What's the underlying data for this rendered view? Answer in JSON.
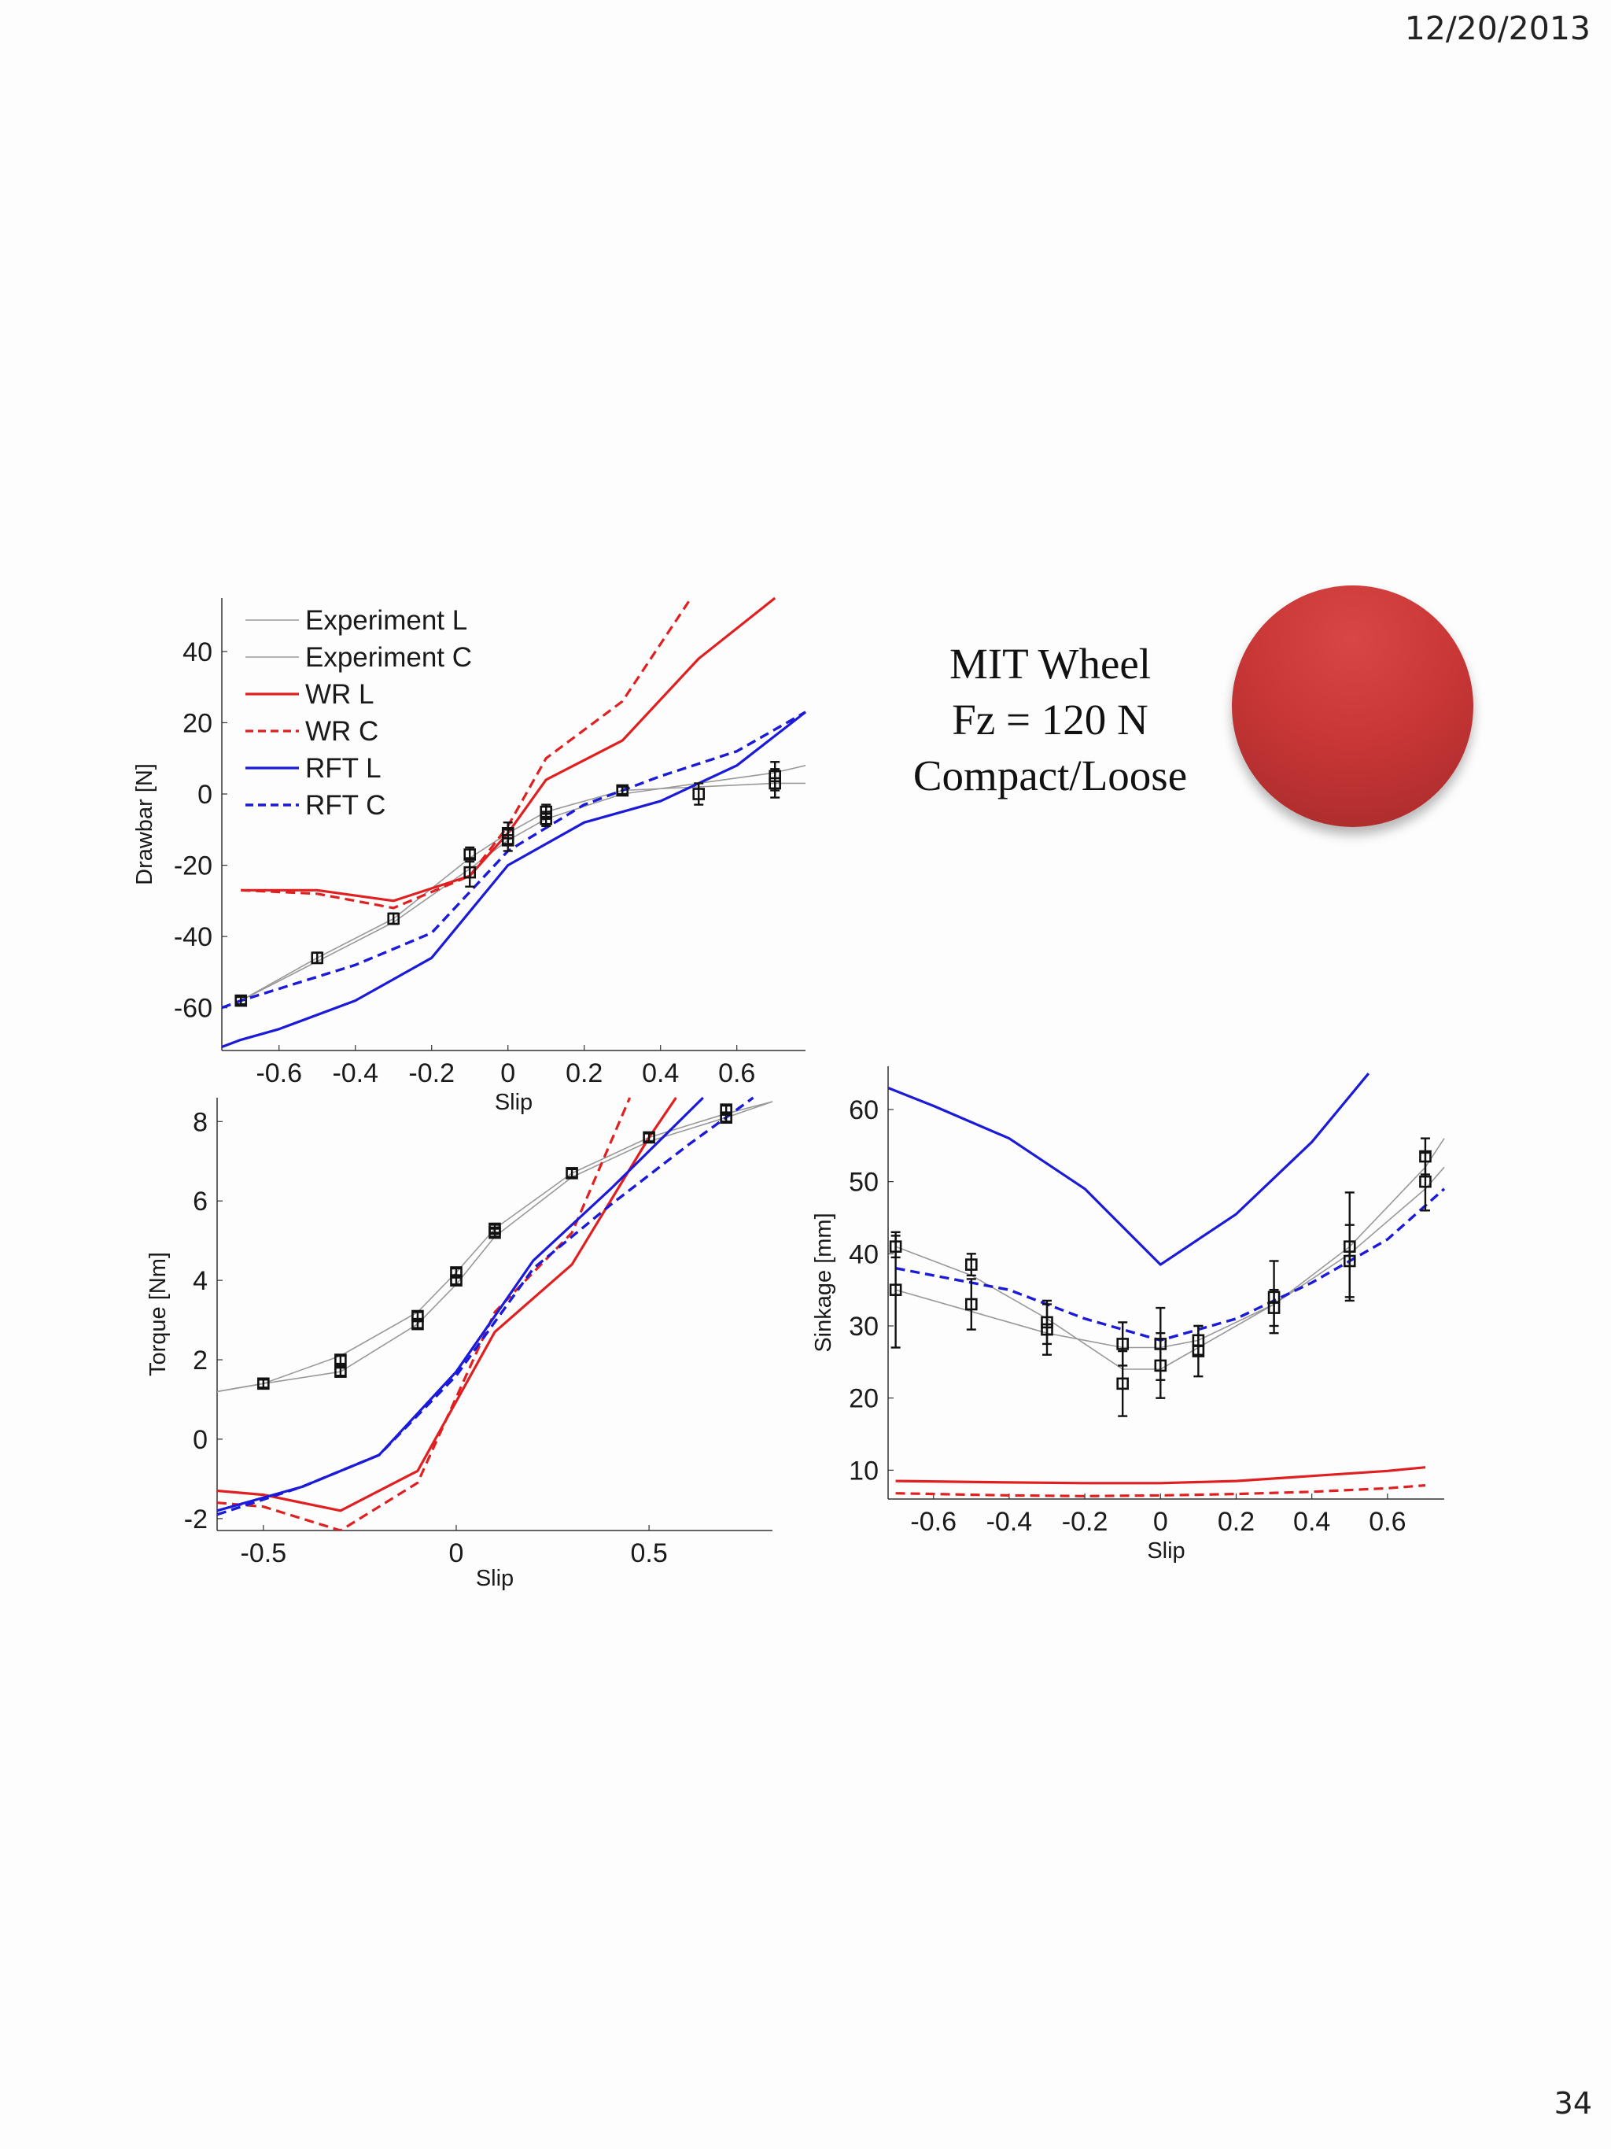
{
  "slide": {
    "date": "12/20/2013",
    "page_number": "34"
  },
  "info": {
    "line1": "MIT Wheel",
    "line2": "Fz = 120 N",
    "line3": "Compact/Loose"
  },
  "colors": {
    "experiment": "#999999",
    "wr": "#e02020",
    "rft": "#1a1ad8",
    "markers": "#111111",
    "wheel": "#c83636"
  },
  "chart_data": [
    {
      "id": "drawbar",
      "type": "line",
      "xlabel": "Slip",
      "ylabel": "Drawbar [N]",
      "xlim": [
        -0.75,
        0.78
      ],
      "ylim": [
        -72,
        55
      ],
      "xticks": [
        -0.6,
        -0.4,
        -0.2,
        0,
        0.2,
        0.4,
        0.6
      ],
      "xtick_labels": [
        "-0.6",
        "-0.4",
        "-0.2",
        "0",
        "0.2",
        "0.4",
        "0.6"
      ],
      "yticks": [
        -60,
        -40,
        -20,
        0,
        20,
        40
      ],
      "ytick_labels": [
        "-60",
        "-40",
        "-20",
        "0",
        "20",
        "40"
      ],
      "legend": {
        "position": "top-left",
        "entries": [
          "Experiment L",
          "Experiment C",
          "WR L",
          "WR C",
          "RFT L",
          "RFT C"
        ]
      },
      "series": [
        {
          "name": "Experiment L",
          "style": "thin-gray",
          "x": [
            -0.7,
            -0.5,
            -0.3,
            -0.1,
            0,
            0.1,
            0.3,
            0.5,
            0.7,
            0.78
          ],
          "y": [
            -58,
            -46,
            -35,
            -18,
            -11,
            -5,
            1,
            2,
            3,
            3
          ]
        },
        {
          "name": "Experiment C",
          "style": "thin-gray",
          "x": [
            -0.7,
            -0.5,
            -0.3,
            -0.1,
            0,
            0.1,
            0.3,
            0.5,
            0.7,
            0.78
          ],
          "y": [
            -58,
            -47,
            -36,
            -21,
            -13,
            -7,
            0,
            3,
            6,
            8
          ]
        },
        {
          "name": "WR L",
          "style": "solid-red",
          "x": [
            -0.7,
            -0.5,
            -0.3,
            -0.1,
            0,
            0.1,
            0.3,
            0.5,
            0.7
          ],
          "y": [
            -27,
            -27,
            -30,
            -23,
            -11,
            4,
            15,
            38,
            55
          ]
        },
        {
          "name": "WR C",
          "style": "dashed-red",
          "x": [
            -0.7,
            -0.5,
            -0.3,
            -0.1,
            0,
            0.1,
            0.3,
            0.48
          ],
          "y": [
            -27,
            -28,
            -32,
            -23,
            -9,
            10,
            26,
            55
          ]
        },
        {
          "name": "RFT L",
          "style": "solid-blue",
          "x": [
            -0.75,
            -0.7,
            -0.6,
            -0.4,
            -0.2,
            0,
            0.2,
            0.4,
            0.6,
            0.78
          ],
          "y": [
            -71,
            -69,
            -66,
            -58,
            -46,
            -20,
            -8,
            -2,
            8,
            23
          ]
        },
        {
          "name": "RFT C",
          "style": "dashed-blue",
          "x": [
            -0.75,
            -0.7,
            -0.4,
            -0.2,
            0,
            0.2,
            0.4,
            0.6,
            0.78
          ],
          "y": [
            -60,
            -58,
            -48,
            -39,
            -16,
            -3,
            5,
            12,
            23
          ]
        }
      ],
      "markers": [
        {
          "x": -0.7,
          "y": -58,
          "err": 1
        },
        {
          "x": -0.5,
          "y": -46,
          "err": 1.5
        },
        {
          "x": -0.3,
          "y": -35,
          "err": 1.5
        },
        {
          "x": -0.1,
          "y": -17,
          "err": 2
        },
        {
          "x": -0.1,
          "y": -22,
          "err": 4
        },
        {
          "x": 0,
          "y": -11,
          "err": 3
        },
        {
          "x": 0,
          "y": -13,
          "err": 3
        },
        {
          "x": 0.1,
          "y": -5,
          "err": 2
        },
        {
          "x": 0.1,
          "y": -7,
          "err": 2
        },
        {
          "x": 0.3,
          "y": 1,
          "err": 1
        },
        {
          "x": 0.5,
          "y": 0,
          "err": 3
        },
        {
          "x": 0.7,
          "y": 3,
          "err": 4
        },
        {
          "x": 0.7,
          "y": 5,
          "err": 4
        }
      ]
    },
    {
      "id": "torque",
      "type": "line",
      "xlabel": "Slip",
      "ylabel": "Torque [Nm]",
      "xlim": [
        -0.62,
        0.82
      ],
      "ylim": [
        -2.3,
        8.6
      ],
      "xticks": [
        -0.5,
        0,
        0.5
      ],
      "xtick_labels": [
        "-0.5",
        "0",
        "0.5"
      ],
      "yticks": [
        -2,
        0,
        2,
        4,
        6,
        8
      ],
      "ytick_labels": [
        "-2",
        "0",
        "2",
        "4",
        "6",
        "8"
      ],
      "series": [
        {
          "name": "Experiment L",
          "style": "thin-gray",
          "x": [
            -0.62,
            -0.5,
            -0.3,
            -0.1,
            0,
            0.1,
            0.3,
            0.5,
            0.7,
            0.82
          ],
          "y": [
            1.2,
            1.4,
            1.7,
            2.9,
            3.9,
            5.1,
            6.6,
            7.5,
            8.1,
            8.5
          ]
        },
        {
          "name": "Experiment C",
          "style": "thin-gray",
          "x": [
            -0.62,
            -0.5,
            -0.3,
            -0.1,
            0,
            0.1,
            0.3,
            0.5,
            0.7,
            0.82
          ],
          "y": [
            1.2,
            1.4,
            2.1,
            3.2,
            4.2,
            5.3,
            6.7,
            7.6,
            8.2,
            8.5
          ]
        },
        {
          "name": "WR L",
          "style": "solid-red",
          "x": [
            -0.62,
            -0.5,
            -0.3,
            -0.1,
            0.1,
            0.3,
            0.5,
            0.57
          ],
          "y": [
            -1.3,
            -1.4,
            -1.8,
            -0.8,
            2.7,
            4.4,
            7.6,
            8.6
          ]
        },
        {
          "name": "WR C",
          "style": "dashed-red",
          "x": [
            -0.62,
            -0.5,
            -0.3,
            -0.1,
            0.1,
            0.3,
            0.45
          ],
          "y": [
            -1.6,
            -1.7,
            -2.3,
            -1.1,
            3.2,
            5.2,
            8.6
          ]
        },
        {
          "name": "RFT L",
          "style": "solid-blue",
          "x": [
            -0.62,
            -0.4,
            -0.2,
            0,
            0.2,
            0.4,
            0.64
          ],
          "y": [
            -1.8,
            -1.2,
            -0.4,
            1.7,
            4.5,
            6.3,
            8.6
          ]
        },
        {
          "name": "RFT C",
          "style": "dashed-blue",
          "x": [
            -0.62,
            -0.4,
            -0.2,
            0,
            0.2,
            0.4,
            0.6,
            0.77
          ],
          "y": [
            -1.9,
            -1.2,
            -0.4,
            1.6,
            4.3,
            5.9,
            7.4,
            8.6
          ]
        }
      ],
      "markers": [
        {
          "x": -0.5,
          "y": 1.4,
          "err": 0.1
        },
        {
          "x": -0.3,
          "y": 1.7,
          "err": 0.1
        },
        {
          "x": -0.3,
          "y": 2.0,
          "err": 0.1
        },
        {
          "x": -0.1,
          "y": 2.9,
          "err": 0.1
        },
        {
          "x": -0.1,
          "y": 3.1,
          "err": 0.1
        },
        {
          "x": 0,
          "y": 4.0,
          "err": 0.1
        },
        {
          "x": 0,
          "y": 4.2,
          "err": 0.1
        },
        {
          "x": 0.1,
          "y": 5.2,
          "err": 0.1
        },
        {
          "x": 0.1,
          "y": 5.3,
          "err": 0.1
        },
        {
          "x": 0.3,
          "y": 6.7,
          "err": 0.1
        },
        {
          "x": 0.5,
          "y": 7.6,
          "err": 0.1
        },
        {
          "x": 0.7,
          "y": 8.1,
          "err": 0.1
        },
        {
          "x": 0.7,
          "y": 8.3,
          "err": 0.1
        }
      ]
    },
    {
      "id": "sinkage",
      "type": "line",
      "xlabel": "Slip",
      "ylabel": "Sinkage [mm]",
      "xlim": [
        -0.72,
        0.75
      ],
      "ylim": [
        6,
        66
      ],
      "xticks": [
        -0.6,
        -0.4,
        -0.2,
        0,
        0.2,
        0.4,
        0.6
      ],
      "xtick_labels": [
        "-0.6",
        "-0.4",
        "-0.2",
        "0",
        "0.2",
        "0.4",
        "0.6"
      ],
      "yticks": [
        10,
        20,
        30,
        40,
        50,
        60
      ],
      "ytick_labels": [
        "10",
        "20",
        "30",
        "40",
        "50",
        "60"
      ],
      "series": [
        {
          "name": "Experiment L",
          "style": "thin-gray",
          "x": [
            -0.7,
            -0.5,
            -0.3,
            -0.1,
            0,
            0.1,
            0.3,
            0.5,
            0.7,
            0.75
          ],
          "y": [
            41,
            37,
            31,
            24,
            24,
            27,
            33,
            41,
            52,
            56
          ]
        },
        {
          "name": "Experiment C",
          "style": "thin-gray",
          "x": [
            -0.7,
            -0.5,
            -0.3,
            -0.1,
            0,
            0.1,
            0.3,
            0.5,
            0.7,
            0.75
          ],
          "y": [
            35,
            32,
            29,
            27,
            27,
            28,
            33,
            40,
            49,
            52
          ]
        },
        {
          "name": "WR L",
          "style": "solid-red",
          "x": [
            -0.7,
            -0.4,
            -0.2,
            0,
            0.2,
            0.4,
            0.6,
            0.7
          ],
          "y": [
            8.5,
            8.3,
            8.2,
            8.2,
            8.5,
            9.2,
            9.9,
            10.4
          ]
        },
        {
          "name": "WR C",
          "style": "dashed-red",
          "x": [
            -0.7,
            -0.4,
            -0.2,
            0,
            0.2,
            0.4,
            0.6,
            0.7
          ],
          "y": [
            6.8,
            6.5,
            6.4,
            6.5,
            6.7,
            7.0,
            7.5,
            7.9
          ]
        },
        {
          "name": "RFT L",
          "style": "solid-blue",
          "x": [
            -0.72,
            -0.6,
            -0.4,
            -0.2,
            0,
            0.2,
            0.4,
            0.55
          ],
          "y": [
            63,
            60.5,
            56,
            49,
            38.5,
            45.5,
            55.5,
            65
          ]
        },
        {
          "name": "RFT C",
          "style": "dashed-blue",
          "x": [
            -0.7,
            -0.4,
            -0.2,
            0,
            0.2,
            0.4,
            0.6,
            0.75
          ],
          "y": [
            38,
            35,
            31,
            28,
            31,
            36,
            42,
            49
          ]
        }
      ],
      "markers": [
        {
          "x": -0.7,
          "y": 41,
          "err": 1.5
        },
        {
          "x": -0.7,
          "y": 35,
          "err": 8
        },
        {
          "x": -0.5,
          "y": 38.5,
          "err": 1.5
        },
        {
          "x": -0.5,
          "y": 33,
          "err": 3.5
        },
        {
          "x": -0.3,
          "y": 30.5,
          "err": 3
        },
        {
          "x": -0.3,
          "y": 29.5,
          "err": 3.5
        },
        {
          "x": -0.1,
          "y": 27.5,
          "err": 3
        },
        {
          "x": -0.1,
          "y": 22,
          "err": 4.5
        },
        {
          "x": 0,
          "y": 27.5,
          "err": 5
        },
        {
          "x": 0,
          "y": 24.5,
          "err": 4.5
        },
        {
          "x": 0.1,
          "y": 28,
          "err": 2
        },
        {
          "x": 0.1,
          "y": 26.5,
          "err": 3.5
        },
        {
          "x": 0.3,
          "y": 34,
          "err": 5
        },
        {
          "x": 0.3,
          "y": 32.5,
          "err": 2.5
        },
        {
          "x": 0.5,
          "y": 41,
          "err": 7.5
        },
        {
          "x": 0.5,
          "y": 39,
          "err": 5
        },
        {
          "x": 0.7,
          "y": 53.5,
          "err": 2.5
        },
        {
          "x": 0.7,
          "y": 50,
          "err": 4
        }
      ]
    }
  ]
}
